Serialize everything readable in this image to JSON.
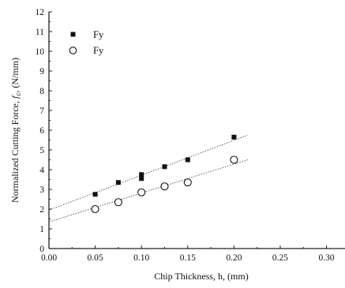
{
  "chart_data": {
    "type": "scatter",
    "xlabel": "Chip Thickness, h, (mm)",
    "ylabel_prefix": "Normalized Cutting Force, ",
    "ylabel_symbol": "f",
    "ylabel_subscript": "c",
    "ylabel_suffix": ", (N/mm)",
    "xlim": [
      0.0,
      0.32
    ],
    "ylim": [
      0,
      12
    ],
    "x_ticks": [
      "0.00",
      "0.05",
      "0.10",
      "0.15",
      "0.20",
      "0.25",
      "0.30"
    ],
    "x_tick_values": [
      0.0,
      0.05,
      0.1,
      0.15,
      0.2,
      0.25,
      0.3
    ],
    "y_ticks": [
      "0",
      "1",
      "2",
      "3",
      "4",
      "5",
      "6",
      "7",
      "8",
      "9",
      "10",
      "11",
      "12"
    ],
    "y_tick_values": [
      0,
      1,
      2,
      3,
      4,
      5,
      6,
      7,
      8,
      9,
      10,
      11,
      12
    ],
    "legend_position": "top-left",
    "grid": false,
    "series": [
      {
        "name": "Fy",
        "marker": "filled-square",
        "color": "#111111",
        "points": [
          {
            "x": 0.05,
            "y": 2.75
          },
          {
            "x": 0.075,
            "y": 3.35
          },
          {
            "x": 0.1,
            "y": 3.55
          },
          {
            "x": 0.1,
            "y": 3.75
          },
          {
            "x": 0.125,
            "y": 4.15
          },
          {
            "x": 0.15,
            "y": 4.5
          },
          {
            "x": 0.2,
            "y": 5.65
          }
        ],
        "fit": {
          "x": [
            0.0,
            0.215
          ],
          "y": [
            1.95,
            5.75
          ]
        }
      },
      {
        "name": "Fy",
        "marker": "open-circle",
        "color": "#111111",
        "points": [
          {
            "x": 0.05,
            "y": 2.0
          },
          {
            "x": 0.075,
            "y": 2.35
          },
          {
            "x": 0.1,
            "y": 2.85
          },
          {
            "x": 0.125,
            "y": 3.15
          },
          {
            "x": 0.15,
            "y": 3.35
          },
          {
            "x": 0.2,
            "y": 4.5
          }
        ],
        "fit": {
          "x": [
            0.0,
            0.215
          ],
          "y": [
            1.35,
            4.5
          ]
        }
      }
    ]
  }
}
